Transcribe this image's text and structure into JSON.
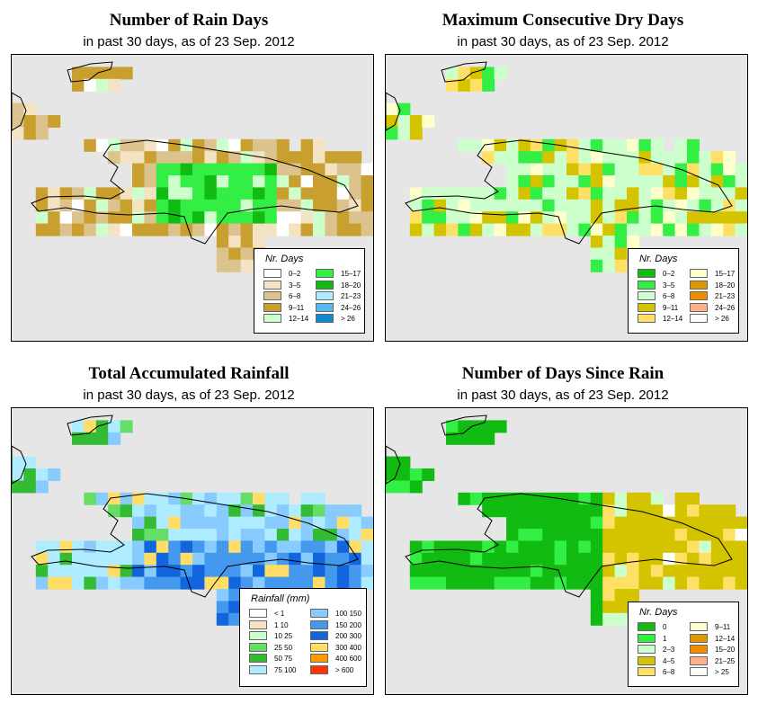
{
  "panels": [
    {
      "key": "rain_days",
      "title": "Number of Rain Days",
      "subtitle": "in past 30 days, as of  23 Sep. 2012",
      "legend": {
        "title": "Nr. Days",
        "items": [
          {
            "label": "0–2",
            "color": "#ffffff"
          },
          {
            "label": "3–5",
            "color": "#f3e3c3"
          },
          {
            "label": "6–8",
            "color": "#dcc28c"
          },
          {
            "label": "9–11",
            "color": "#c9a02f"
          },
          {
            "label": "12–14",
            "color": "#ccffcc"
          },
          {
            "label": "15–17",
            "color": "#33ee44"
          },
          {
            "label": "18–20",
            "color": "#11bb11"
          },
          {
            "label": "21–23",
            "color": "#b0ecff"
          },
          {
            "label": "24–26",
            "color": "#55bbee"
          },
          {
            "label": "> 26",
            "color": "#1188cc"
          }
        ]
      }
    },
    {
      "key": "dry_days",
      "title": "Maximum Consecutive Dry Days",
      "subtitle": "in past 30 days, as of  23 Sep. 2012",
      "legend": {
        "title": "Nr. Days",
        "items": [
          {
            "label": "0–2",
            "color": "#11bb11"
          },
          {
            "label": "3–5",
            "color": "#33ee44"
          },
          {
            "label": "6–8",
            "color": "#ccffcc"
          },
          {
            "label": "9–11",
            "color": "#d4c400"
          },
          {
            "label": "12–14",
            "color": "#ffe066"
          },
          {
            "label": "15–17",
            "color": "#ffffcc"
          },
          {
            "label": "18–20",
            "color": "#dd9900"
          },
          {
            "label": "21–23",
            "color": "#f08c00"
          },
          {
            "label": "24–26",
            "color": "#ffb08a"
          },
          {
            "label": "> 26",
            "color": "#ffffff"
          }
        ]
      }
    },
    {
      "key": "rainfall",
      "title": "Total Accumulated Rainfall",
      "subtitle": "in past 30 days, as of  23 Sep. 2012",
      "legend": {
        "title": "Rainfall (mm)",
        "items": [
          {
            "label": "< 1",
            "color": "#ffffff"
          },
          {
            "label": "1    10",
            "color": "#f3e3c3"
          },
          {
            "label": "10    25",
            "color": "#ccffcc"
          },
          {
            "label": "25    50",
            "color": "#66dd66"
          },
          {
            "label": "50    75",
            "color": "#33bb33"
          },
          {
            "label": "75   100",
            "color": "#b0ecff"
          },
          {
            "label": "100   150",
            "color": "#88ccff"
          },
          {
            "label": "150   200",
            "color": "#4499ee"
          },
          {
            "label": "200   300",
            "color": "#1166dd"
          },
          {
            "label": "300   400",
            "color": "#ffdd66"
          },
          {
            "label": "400   600",
            "color": "#ff9900"
          },
          {
            "label": "> 600",
            "color": "#ff3300"
          }
        ]
      }
    },
    {
      "key": "since_rain",
      "title": "Number of Days Since Rain",
      "subtitle": "in past 30 days, as of  23 Sep. 2012",
      "legend": {
        "title": "Nr. Days",
        "items": [
          {
            "label": "0",
            "color": "#11bb11"
          },
          {
            "label": "1",
            "color": "#33ee44"
          },
          {
            "label": "2–3",
            "color": "#ccffcc"
          },
          {
            "label": "4–5",
            "color": "#d4c400"
          },
          {
            "label": "6–8",
            "color": "#ffe066"
          },
          {
            "label": "9–11",
            "color": "#ffffcc"
          },
          {
            "label": "12–14",
            "color": "#dd9900"
          },
          {
            "label": "15–20",
            "color": "#f08c00"
          },
          {
            "label": "21–25",
            "color": "#ffb08a"
          },
          {
            "label": "> 25",
            "color": "#ffffff"
          }
        ]
      }
    }
  ]
}
